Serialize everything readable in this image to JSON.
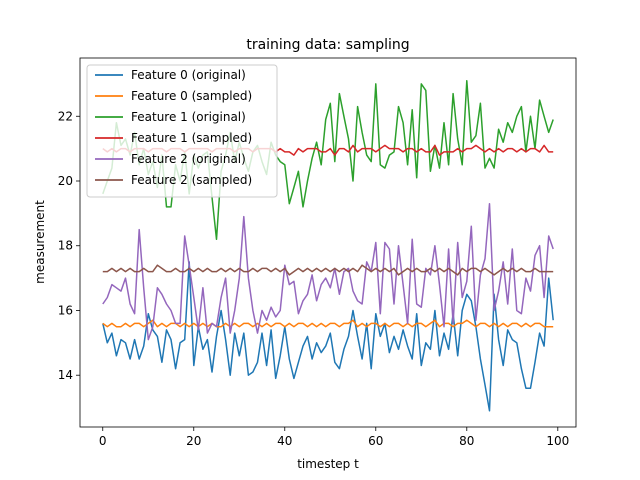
{
  "chart_data": {
    "type": "line",
    "title": "training data: sampling",
    "xlabel": "timestep t",
    "ylabel": "measurement",
    "xlim": [
      -5,
      104
    ],
    "ylim": [
      12.4,
      23.8
    ],
    "xticks": [
      0,
      20,
      40,
      60,
      80,
      100
    ],
    "yticks": [
      14,
      16,
      18,
      20,
      22
    ],
    "legend_position": "upper-left",
    "grid": false,
    "series": [
      {
        "name": "Feature 0 (original)",
        "color": "#1f77b4",
        "x": [
          0,
          1,
          2,
          3,
          4,
          5,
          6,
          7,
          8,
          9,
          10,
          11,
          12,
          13,
          14,
          15,
          16,
          17,
          18,
          19,
          20,
          21,
          22,
          23,
          24,
          25,
          26,
          27,
          28,
          29,
          30,
          31,
          32,
          33,
          34,
          35,
          36,
          37,
          38,
          39,
          40,
          41,
          42,
          43,
          44,
          45,
          46,
          47,
          48,
          49,
          50,
          51,
          52,
          53,
          54,
          55,
          56,
          57,
          58,
          59,
          60,
          61,
          62,
          63,
          64,
          65,
          66,
          67,
          68,
          69,
          70,
          71,
          72,
          73,
          74,
          75,
          76,
          77,
          78,
          79,
          80,
          81,
          82,
          83,
          84,
          85,
          86,
          87,
          88,
          89,
          90,
          91,
          92,
          93,
          94,
          95,
          96,
          97,
          98,
          99
        ],
        "values": [
          15.6,
          15.0,
          15.3,
          14.6,
          15.1,
          15.0,
          14.5,
          15.1,
          14.5,
          14.9,
          15.9,
          15.4,
          15.2,
          14.4,
          15.4,
          15.1,
          14.2,
          15.0,
          15.1,
          17.5,
          14.3,
          15.5,
          14.8,
          15.1,
          14.1,
          15.2,
          16.0,
          15.1,
          14.0,
          15.3,
          14.6,
          15.3,
          14.0,
          14.1,
          14.4,
          15.3,
          14.3,
          15.4,
          13.9,
          14.6,
          15.5,
          14.5,
          13.9,
          14.4,
          14.9,
          15.2,
          14.5,
          15.0,
          14.7,
          14.9,
          15.3,
          14.4,
          14.2,
          14.8,
          15.2,
          16.0,
          15.2,
          14.5,
          15.6,
          14.2,
          15.9,
          15.2,
          15.6,
          14.7,
          15.2,
          14.8,
          15.4,
          14.9,
          14.5,
          15.9,
          14.3,
          15.0,
          14.8,
          16.0,
          14.6,
          15.3,
          14.8,
          15.9,
          14.6,
          16.0,
          16.5,
          16.3,
          15.5,
          14.5,
          13.7,
          12.9,
          16.5,
          15.1,
          14.3,
          15.4,
          15.1,
          15.0,
          14.2,
          13.6,
          13.6,
          14.4,
          15.3,
          14.9,
          17.0,
          15.7
        ]
      },
      {
        "name": "Feature 0 (sampled)",
        "color": "#ff7f0e",
        "x": [
          0,
          1,
          2,
          3,
          4,
          5,
          6,
          7,
          8,
          9,
          10,
          11,
          12,
          13,
          14,
          15,
          16,
          17,
          18,
          19,
          20,
          21,
          22,
          23,
          24,
          25,
          26,
          27,
          28,
          29,
          30,
          31,
          32,
          33,
          34,
          35,
          36,
          37,
          38,
          39,
          40,
          41,
          42,
          43,
          44,
          45,
          46,
          47,
          48,
          49,
          50,
          51,
          52,
          53,
          54,
          55,
          56,
          57,
          58,
          59,
          60,
          61,
          62,
          63,
          64,
          65,
          66,
          67,
          68,
          69,
          70,
          71,
          72,
          73,
          74,
          75,
          76,
          77,
          78,
          79,
          80,
          81,
          82,
          83,
          84,
          85,
          86,
          87,
          88,
          89,
          90,
          91,
          92,
          93,
          94,
          95,
          96,
          97,
          98,
          99
        ],
        "values": [
          15.6,
          15.5,
          15.6,
          15.5,
          15.5,
          15.6,
          15.5,
          15.6,
          15.6,
          15.5,
          15.6,
          15.7,
          15.5,
          15.6,
          15.5,
          15.6,
          15.6,
          15.5,
          15.6,
          15.5,
          15.6,
          15.5,
          15.6,
          15.5,
          15.6,
          15.5,
          15.5,
          15.6,
          15.5,
          15.6,
          15.5,
          15.6,
          15.6,
          15.5,
          15.6,
          15.5,
          15.6,
          15.5,
          15.6,
          15.6,
          15.5,
          15.6,
          15.5,
          15.6,
          15.6,
          15.5,
          15.6,
          15.5,
          15.6,
          15.5,
          15.6,
          15.6,
          15.5,
          15.6,
          15.6,
          15.7,
          15.5,
          15.6,
          15.5,
          15.6,
          15.6,
          15.5,
          15.6,
          15.5,
          15.6,
          15.6,
          15.5,
          15.6,
          15.5,
          15.6,
          15.6,
          15.5,
          15.6,
          15.7,
          15.5,
          15.6,
          15.6,
          15.5,
          15.6,
          15.6,
          15.7,
          15.6,
          15.5,
          15.6,
          15.6,
          15.5,
          15.6,
          15.5,
          15.6,
          15.5,
          15.6,
          15.6,
          15.5,
          15.6,
          15.5,
          15.6,
          15.6,
          15.5,
          15.5,
          15.5
        ]
      },
      {
        "name": "Feature 1 (original)",
        "color": "#2ca02c",
        "x": [
          0,
          1,
          2,
          3,
          4,
          5,
          6,
          7,
          8,
          9,
          10,
          11,
          12,
          13,
          14,
          15,
          16,
          17,
          18,
          19,
          20,
          21,
          22,
          23,
          24,
          25,
          26,
          27,
          28,
          29,
          30,
          31,
          32,
          33,
          34,
          35,
          36,
          37,
          38,
          39,
          40,
          41,
          42,
          43,
          44,
          45,
          46,
          47,
          48,
          49,
          50,
          51,
          52,
          53,
          54,
          55,
          56,
          57,
          58,
          59,
          60,
          61,
          62,
          63,
          64,
          65,
          66,
          67,
          68,
          69,
          70,
          71,
          72,
          73,
          74,
          75,
          76,
          77,
          78,
          79,
          80,
          81,
          82,
          83,
          84,
          85,
          86,
          87,
          88,
          89,
          90,
          91,
          92,
          93,
          94,
          95,
          96,
          97,
          98,
          99
        ],
        "values": [
          19.6,
          20.0,
          20.4,
          21.8,
          21.1,
          21.3,
          20.8,
          21.5,
          20.5,
          21.0,
          20.2,
          20.6,
          19.8,
          20.8,
          19.2,
          19.2,
          20.5,
          20.0,
          20.9,
          19.6,
          20.8,
          20.4,
          20.8,
          20.9,
          19.5,
          18.2,
          20.3,
          20.8,
          21.5,
          20.6,
          21.2,
          20.7,
          20.3,
          20.9,
          21.1,
          20.6,
          20.2,
          21.2,
          20.8,
          20.6,
          20.5,
          19.3,
          19.8,
          20.3,
          19.2,
          20.0,
          20.7,
          21.2,
          20.5,
          21.9,
          22.4,
          20.6,
          22.7,
          22.0,
          21.3,
          20.0,
          22.3,
          21.5,
          20.8,
          20.6,
          23.0,
          20.5,
          20.4,
          20.8,
          20.9,
          22.3,
          21.8,
          20.5,
          22.2,
          20.1,
          23.0,
          22.8,
          20.3,
          21.1,
          20.4,
          21.8,
          20.5,
          22.7,
          21.3,
          20.5,
          23.1,
          21.2,
          21.4,
          22.4,
          20.4,
          20.7,
          20.4,
          21.6,
          21.2,
          21.8,
          21.5,
          22.0,
          22.3,
          20.9,
          22.0,
          21.0,
          22.5,
          22.0,
          21.5,
          21.9
        ]
      },
      {
        "name": "Feature 1 (sampled)",
        "color": "#d62728",
        "x": [
          0,
          1,
          2,
          3,
          4,
          5,
          6,
          7,
          8,
          9,
          10,
          11,
          12,
          13,
          14,
          15,
          16,
          17,
          18,
          19,
          20,
          21,
          22,
          23,
          24,
          25,
          26,
          27,
          28,
          29,
          30,
          31,
          32,
          33,
          34,
          35,
          36,
          37,
          38,
          39,
          40,
          41,
          42,
          43,
          44,
          45,
          46,
          47,
          48,
          49,
          50,
          51,
          52,
          53,
          54,
          55,
          56,
          57,
          58,
          59,
          60,
          61,
          62,
          63,
          64,
          65,
          66,
          67,
          68,
          69,
          70,
          71,
          72,
          73,
          74,
          75,
          76,
          77,
          78,
          79,
          80,
          81,
          82,
          83,
          84,
          85,
          86,
          87,
          88,
          89,
          90,
          91,
          92,
          93,
          94,
          95,
          96,
          97,
          98,
          99
        ],
        "values": [
          21.0,
          20.9,
          21.0,
          20.9,
          21.0,
          21.0,
          20.9,
          21.0,
          21.0,
          21.0,
          20.9,
          21.0,
          21.0,
          21.0,
          20.9,
          21.0,
          21.0,
          21.0,
          20.9,
          21.0,
          21.0,
          21.0,
          21.0,
          21.0,
          20.9,
          21.0,
          21.0,
          21.0,
          21.0,
          20.9,
          21.0,
          21.0,
          21.0,
          20.9,
          21.0,
          21.0,
          21.0,
          21.0,
          20.9,
          21.0,
          20.9,
          20.9,
          20.8,
          21.0,
          20.9,
          21.0,
          21.0,
          21.0,
          20.9,
          20.9,
          21.0,
          20.8,
          21.0,
          21.0,
          20.9,
          21.1,
          20.9,
          21.0,
          21.0,
          21.0,
          20.9,
          21.0,
          21.1,
          21.0,
          21.0,
          21.0,
          20.9,
          21.0,
          21.0,
          20.9,
          21.0,
          20.9,
          20.9,
          21.1,
          20.8,
          20.9,
          20.9,
          20.9,
          21.0,
          20.9,
          21.0,
          21.0,
          21.1,
          21.0,
          20.9,
          21.0,
          20.9,
          21.0,
          20.9,
          21.0,
          21.0,
          20.9,
          21.0,
          20.9,
          21.0,
          21.0,
          20.9,
          21.1,
          20.9,
          20.9
        ]
      },
      {
        "name": "Feature 2 (original)",
        "color": "#9467bd",
        "x": [
          0,
          1,
          2,
          3,
          4,
          5,
          6,
          7,
          8,
          9,
          10,
          11,
          12,
          13,
          14,
          15,
          16,
          17,
          18,
          19,
          20,
          21,
          22,
          23,
          24,
          25,
          26,
          27,
          28,
          29,
          30,
          31,
          32,
          33,
          34,
          35,
          36,
          37,
          38,
          39,
          40,
          41,
          42,
          43,
          44,
          45,
          46,
          47,
          48,
          49,
          50,
          51,
          52,
          53,
          54,
          55,
          56,
          57,
          58,
          59,
          60,
          61,
          62,
          63,
          64,
          65,
          66,
          67,
          68,
          69,
          70,
          71,
          72,
          73,
          74,
          75,
          76,
          77,
          78,
          79,
          80,
          81,
          82,
          83,
          84,
          85,
          86,
          87,
          88,
          89,
          90,
          91,
          92,
          93,
          94,
          95,
          96,
          97,
          98,
          99
        ],
        "values": [
          16.2,
          16.4,
          16.8,
          16.7,
          16.6,
          17.0,
          16.2,
          15.9,
          18.5,
          16.7,
          15.1,
          15.5,
          16.7,
          16.5,
          16.2,
          16.0,
          15.6,
          15.6,
          18.3,
          17.4,
          16.4,
          15.4,
          16.7,
          15.3,
          15.6,
          15.5,
          16.4,
          17.0,
          15.3,
          16.0,
          17.0,
          18.9,
          17.0,
          16.0,
          15.3,
          16.0,
          15.7,
          16.1,
          15.8,
          16.0,
          17.4,
          16.8,
          16.9,
          15.9,
          16.3,
          16.5,
          17.1,
          16.3,
          16.8,
          17.0,
          16.7,
          17.3,
          16.5,
          17.2,
          17.3,
          16.6,
          16.3,
          16.2,
          17.5,
          17.2,
          18.1,
          15.9,
          18.1,
          17.9,
          16.2,
          18.0,
          16.8,
          15.6,
          18.2,
          16.2,
          16.1,
          17.3,
          17.1,
          18.0,
          16.8,
          15.5,
          17.9,
          15.6,
          18.1,
          16.4,
          16.9,
          18.6,
          15.7,
          17.1,
          17.6,
          19.3,
          16.0,
          16.6,
          17.5,
          16.2,
          17.9,
          16.0,
          15.9,
          17.0,
          16.6,
          17.7,
          18.0,
          16.4,
          18.3,
          17.9
        ]
      },
      {
        "name": "Feature 2 (sampled)",
        "color": "#8c564b",
        "x": [
          0,
          1,
          2,
          3,
          4,
          5,
          6,
          7,
          8,
          9,
          10,
          11,
          12,
          13,
          14,
          15,
          16,
          17,
          18,
          19,
          20,
          21,
          22,
          23,
          24,
          25,
          26,
          27,
          28,
          29,
          30,
          31,
          32,
          33,
          34,
          35,
          36,
          37,
          38,
          39,
          40,
          41,
          42,
          43,
          44,
          45,
          46,
          47,
          48,
          49,
          50,
          51,
          52,
          53,
          54,
          55,
          56,
          57,
          58,
          59,
          60,
          61,
          62,
          63,
          64,
          65,
          66,
          67,
          68,
          69,
          70,
          71,
          72,
          73,
          74,
          75,
          76,
          77,
          78,
          79,
          80,
          81,
          82,
          83,
          84,
          85,
          86,
          87,
          88,
          89,
          90,
          91,
          92,
          93,
          94,
          95,
          96,
          97,
          98,
          99
        ],
        "values": [
          17.2,
          17.2,
          17.3,
          17.2,
          17.3,
          17.2,
          17.3,
          17.2,
          17.2,
          17.3,
          17.2,
          17.2,
          17.4,
          17.3,
          17.2,
          17.2,
          17.3,
          17.2,
          17.2,
          17.3,
          17.2,
          17.3,
          17.2,
          17.3,
          17.2,
          17.2,
          17.3,
          17.2,
          17.3,
          17.2,
          17.3,
          17.2,
          17.2,
          17.3,
          17.2,
          17.3,
          17.3,
          17.2,
          17.3,
          17.2,
          17.3,
          17.1,
          17.2,
          17.3,
          17.2,
          17.3,
          17.2,
          17.3,
          17.2,
          17.3,
          17.2,
          17.3,
          17.2,
          17.3,
          17.2,
          17.3,
          17.2,
          17.4,
          17.3,
          17.2,
          17.3,
          17.2,
          17.3,
          17.2,
          17.3,
          17.1,
          17.2,
          17.3,
          17.2,
          17.3,
          17.2,
          17.2,
          17.3,
          17.2,
          17.3,
          17.2,
          17.3,
          17.2,
          17.1,
          17.3,
          17.2,
          17.3,
          17.3,
          17.2,
          17.3,
          17.2,
          17.1,
          17.2,
          17.3,
          17.2,
          17.3,
          17.2,
          17.3,
          17.2,
          17.2,
          17.3,
          17.2,
          17.2,
          17.2,
          17.2
        ]
      }
    ]
  }
}
